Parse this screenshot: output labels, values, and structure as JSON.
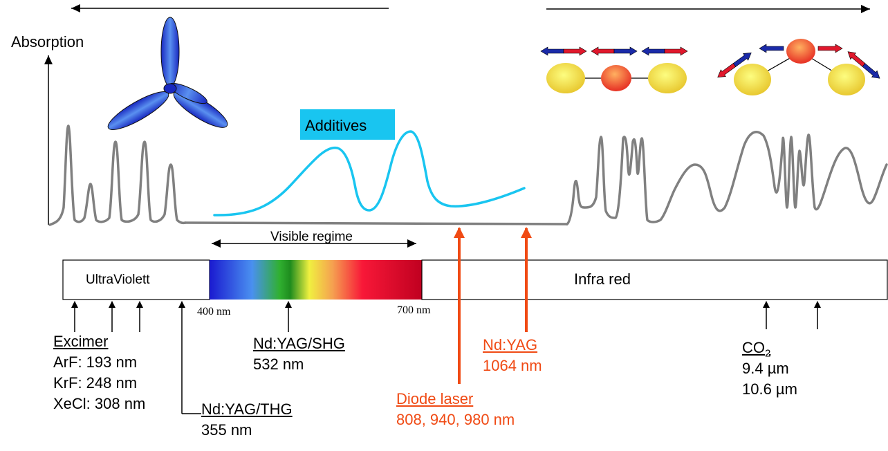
{
  "axis": {
    "y_label": "Absorption"
  },
  "additives": {
    "label": "Additives",
    "color": "#19c5f0"
  },
  "visible": {
    "label": "Visible regime",
    "start_label": "400 nm",
    "end_label": "700 nm"
  },
  "spectrum_bar": {
    "uv_label": "UltraViolett",
    "ir_label": "Infra red"
  },
  "lasers": {
    "excimer": {
      "title": "Excimer",
      "lines": [
        "ArF: 193 nm",
        "KrF: 248 nm",
        "XeCl: 308 nm"
      ]
    },
    "thg": {
      "title": "Nd:YAG/THG",
      "value": "355 nm"
    },
    "shg": {
      "title": "Nd:YAG/SHG",
      "value": "532 nm"
    },
    "diode": {
      "title": "Diode laser",
      "value": "808, 940, 980 nm"
    },
    "ndyag": {
      "title": "Nd:YAG",
      "value": "1064 nm"
    },
    "co2": {
      "title": "CO",
      "title_sub": "2",
      "lines": [
        "9.4 µm",
        "10.6 µm"
      ]
    }
  },
  "colors": {
    "curve": "#808080",
    "laser_arrow": "#f04a14",
    "accent_text": "#f04a14"
  }
}
